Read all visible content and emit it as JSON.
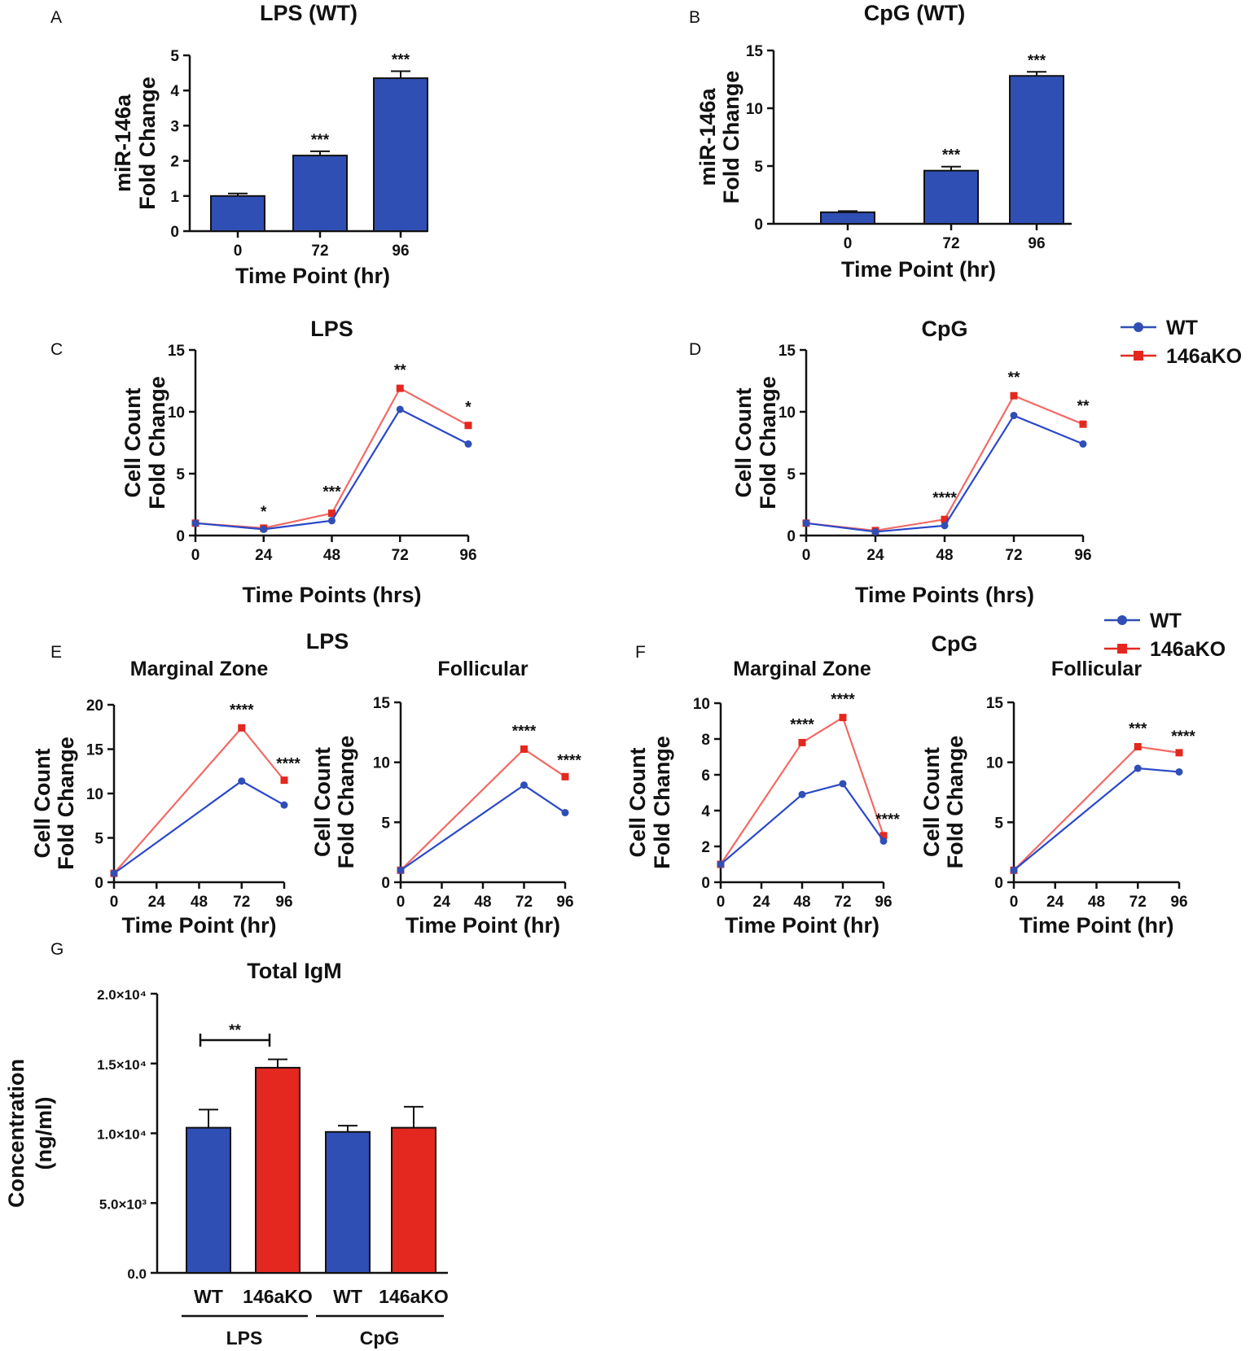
{
  "colors": {
    "wt": "#2f4fb5",
    "ko": "#e4281f",
    "ko_line": "#f26a66",
    "wt_line": "#2a48c9",
    "axis": "#111111"
  },
  "legend": {
    "items": [
      {
        "label": "WT",
        "color": "#2f4fb5",
        "marker": "circle"
      },
      {
        "label": "146aKO",
        "color": "#e4281f",
        "marker": "square"
      }
    ]
  },
  "chart_data": [
    {
      "id": "A",
      "panel_label": "A",
      "type": "bar",
      "title": "LPS (WT)",
      "ylabel": [
        "miR-146a",
        "Fold Change"
      ],
      "xlabel": "Time Point (hr)",
      "categories": [
        "0",
        "72",
        "96"
      ],
      "values": [
        1.0,
        2.15,
        4.35
      ],
      "errors": [
        0.07,
        0.12,
        0.2
      ],
      "annotations": [
        "",
        "***",
        "***"
      ],
      "ylim": [
        0,
        5
      ],
      "yticks": [
        "0",
        "1",
        "2",
        "3",
        "4",
        "5"
      ]
    },
    {
      "id": "B",
      "panel_label": "B",
      "type": "bar",
      "title": "CpG (WT)",
      "ylabel": [
        "miR-146a",
        "Fold Change"
      ],
      "xlabel": "Time Point (hr)",
      "categories": [
        "0",
        "72",
        "96"
      ],
      "values": [
        1.0,
        4.6,
        12.8
      ],
      "errors": [
        0.1,
        0.35,
        0.35
      ],
      "annotations": [
        "",
        "***",
        "***"
      ],
      "ylim": [
        0,
        15
      ],
      "yticks": [
        "0",
        "5",
        "10",
        "15"
      ]
    },
    {
      "id": "C",
      "panel_label": "C",
      "type": "line",
      "title": "LPS",
      "ylabel": [
        "Cell Count",
        "Fold Change"
      ],
      "xlabel": "Time Points (hrs)",
      "x": [
        0,
        24,
        48,
        72,
        96
      ],
      "xticks": [
        "0",
        "24",
        "48",
        "72",
        "96"
      ],
      "ylim": [
        0,
        15
      ],
      "yticks": [
        "0",
        "5",
        "10",
        "15"
      ],
      "series": [
        {
          "name": "WT",
          "values": [
            1.0,
            0.5,
            1.2,
            10.2,
            7.4
          ]
        },
        {
          "name": "146aKO",
          "values": [
            1.0,
            0.6,
            1.8,
            11.9,
            8.9
          ]
        }
      ],
      "annotations": [
        "",
        "*",
        "***",
        "**",
        "*"
      ]
    },
    {
      "id": "D",
      "panel_label": "D",
      "type": "line",
      "title": "CpG",
      "ylabel": [
        "Cell Count",
        "Fold Change"
      ],
      "xlabel": "Time Points (hrs)",
      "x": [
        0,
        24,
        48,
        72,
        96
      ],
      "xticks": [
        "0",
        "24",
        "48",
        "72",
        "96"
      ],
      "ylim": [
        0,
        15
      ],
      "yticks": [
        "0",
        "5",
        "10",
        "15"
      ],
      "series": [
        {
          "name": "WT",
          "values": [
            1.0,
            0.3,
            0.8,
            9.7,
            7.4
          ]
        },
        {
          "name": "146aKO",
          "values": [
            1.0,
            0.4,
            1.3,
            11.3,
            9.0
          ]
        }
      ],
      "annotations": [
        "",
        "",
        "****",
        "**",
        "**"
      ]
    },
    {
      "id": "E1",
      "panel_label": "E",
      "group_title": "LPS",
      "type": "line",
      "title": "Marginal Zone",
      "ylabel": [
        "Cell Count",
        "Fold Change"
      ],
      "xlabel": "Time Point (hr)",
      "x": [
        0,
        72,
        96
      ],
      "xticks": [
        "0",
        "24",
        "48",
        "72",
        "96"
      ],
      "ylim": [
        0,
        20
      ],
      "yticks": [
        "0",
        "5",
        "10",
        "15",
        "20"
      ],
      "series": [
        {
          "name": "WT",
          "values": [
            1.0,
            11.4,
            8.7
          ]
        },
        {
          "name": "146aKO",
          "values": [
            1.0,
            17.4,
            11.5
          ]
        }
      ],
      "annotations": [
        "",
        "****",
        "****"
      ]
    },
    {
      "id": "E2",
      "type": "line",
      "title": "Follicular",
      "ylabel": [
        "Cell Count",
        "Fold Change"
      ],
      "xlabel": "Time Point (hr)",
      "x": [
        0,
        72,
        96
      ],
      "xticks": [
        "0",
        "24",
        "48",
        "72",
        "96"
      ],
      "ylim": [
        0,
        15
      ],
      "yticks": [
        "0",
        "5",
        "10",
        "15"
      ],
      "series": [
        {
          "name": "WT",
          "values": [
            1.0,
            8.1,
            5.8
          ]
        },
        {
          "name": "146aKO",
          "values": [
            1.0,
            11.1,
            8.8
          ]
        }
      ],
      "annotations": [
        "",
        "****",
        "****"
      ]
    },
    {
      "id": "F1",
      "panel_label": "F",
      "group_title": "CpG",
      "type": "line",
      "title": "Marginal Zone",
      "ylabel": [
        "Cell Count",
        "Fold Change"
      ],
      "xlabel": "Time Point (hr)",
      "x": [
        0,
        48,
        72,
        96
      ],
      "xticks": [
        "0",
        "24",
        "48",
        "72",
        "96"
      ],
      "ylim": [
        0,
        10
      ],
      "yticks": [
        "0",
        "2",
        "4",
        "6",
        "8",
        "10"
      ],
      "series": [
        {
          "name": "WT",
          "values": [
            1.0,
            4.9,
            5.5,
            2.3
          ]
        },
        {
          "name": "146aKO",
          "values": [
            1.0,
            7.8,
            9.2,
            2.6
          ]
        }
      ],
      "annotations": [
        "",
        "****",
        "****",
        "****"
      ]
    },
    {
      "id": "F2",
      "type": "line",
      "title": "Follicular",
      "ylabel": [
        "Cell Count",
        "Fold Change"
      ],
      "xlabel": "Time Point (hr)",
      "x": [
        0,
        72,
        96
      ],
      "xticks": [
        "0",
        "24",
        "48",
        "72",
        "96"
      ],
      "ylim": [
        0,
        15
      ],
      "yticks": [
        "0",
        "5",
        "10",
        "15"
      ],
      "series": [
        {
          "name": "WT",
          "values": [
            1.0,
            9.5,
            9.2
          ]
        },
        {
          "name": "146aKO",
          "values": [
            1.0,
            11.3,
            10.8
          ]
        }
      ],
      "annotations": [
        "",
        "***",
        "****"
      ]
    },
    {
      "id": "G",
      "panel_label": "G",
      "type": "bar",
      "title": "Total IgM",
      "ylabel": [
        "Concentration",
        "(ng/ml)"
      ],
      "categories": [
        "WT",
        "146aKO",
        "WT",
        "146aKO"
      ],
      "values": [
        10400,
        14700,
        10100,
        10400
      ],
      "errors": [
        1300,
        600,
        450,
        1500
      ],
      "groups": [
        "LPS",
        "CpG"
      ],
      "ylim": [
        0,
        20000
      ],
      "yticks": [
        "0.0",
        "5.0×10³",
        "1.0×10⁴",
        "1.5×10⁴",
        "2.0×10⁴"
      ],
      "significance": {
        "between": [
          0,
          1
        ],
        "label": "**"
      }
    }
  ]
}
